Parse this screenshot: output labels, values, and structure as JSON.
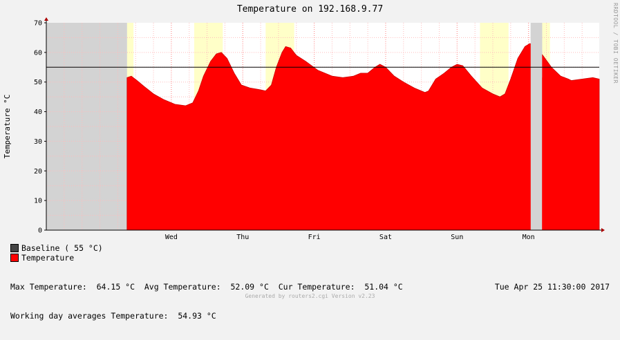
{
  "chart_data": {
    "type": "area",
    "title": "Temperature on 192.168.9.77",
    "ylabel": "Temperature °C",
    "ylim": [
      0,
      70
    ],
    "yticks": [
      0,
      10,
      20,
      30,
      40,
      50,
      60,
      70
    ],
    "xlim_days": [
      -2.25,
      4.82
    ],
    "day_labels": [
      "Wed",
      "Thu",
      "Fri",
      "Sat",
      "Sun",
      "Mon"
    ],
    "day_label_x": [
      -0.5,
      0.5,
      1.5,
      2.5,
      3.5,
      4.5
    ],
    "baseline": {
      "name": "Baseline ( 55 °C)",
      "value": 55,
      "color": "#555555"
    },
    "series": [
      {
        "name": "Temperature",
        "color": "#ff0000",
        "gap": [
          4.53,
          4.69
        ],
        "points": [
          [
            -1.12,
            51.5
          ],
          [
            -1.06,
            52
          ],
          [
            -0.98,
            50.5
          ],
          [
            -0.88,
            48.5
          ],
          [
            -0.75,
            46
          ],
          [
            -0.6,
            44
          ],
          [
            -0.45,
            42.5
          ],
          [
            -0.3,
            42
          ],
          [
            -0.2,
            43
          ],
          [
            -0.12,
            47
          ],
          [
            -0.05,
            52
          ],
          [
            0.05,
            57
          ],
          [
            0.13,
            59.5
          ],
          [
            0.2,
            60
          ],
          [
            0.28,
            58
          ],
          [
            0.38,
            53
          ],
          [
            0.48,
            49
          ],
          [
            0.6,
            48
          ],
          [
            0.72,
            47.5
          ],
          [
            0.82,
            47
          ],
          [
            0.9,
            49
          ],
          [
            0.97,
            55
          ],
          [
            1.05,
            60
          ],
          [
            1.1,
            62
          ],
          [
            1.17,
            61.5
          ],
          [
            1.25,
            59
          ],
          [
            1.38,
            57
          ],
          [
            1.55,
            54
          ],
          [
            1.75,
            52
          ],
          [
            1.9,
            51.5
          ],
          [
            2.05,
            52
          ],
          [
            2.15,
            53
          ],
          [
            2.25,
            53
          ],
          [
            2.35,
            55
          ],
          [
            2.42,
            56
          ],
          [
            2.5,
            55
          ],
          [
            2.62,
            52
          ],
          [
            2.75,
            50
          ],
          [
            2.9,
            48
          ],
          [
            3.05,
            46.5
          ],
          [
            3.1,
            47
          ],
          [
            3.2,
            51
          ],
          [
            3.32,
            53
          ],
          [
            3.42,
            55
          ],
          [
            3.5,
            56
          ],
          [
            3.58,
            55.5
          ],
          [
            3.7,
            52
          ],
          [
            3.85,
            48
          ],
          [
            4.0,
            46
          ],
          [
            4.1,
            45
          ],
          [
            4.17,
            46
          ],
          [
            4.25,
            51
          ],
          [
            4.35,
            58
          ],
          [
            4.45,
            62
          ],
          [
            4.52,
            63
          ],
          [
            4.6,
            62
          ],
          [
            4.7,
            59
          ],
          [
            4.82,
            55
          ],
          [
            4.95,
            52
          ],
          [
            5.06,
            51
          ],
          [
            5.1,
            50.5
          ],
          [
            5.4,
            51.5
          ],
          [
            5.49,
            51
          ]
        ],
        "tail": [
          [
            4.69,
            51.5
          ],
          [
            4.8,
            51
          ]
        ]
      }
    ],
    "shading": {
      "nodata": [
        [
          -2.25,
          -1.12
        ],
        [
          4.53,
          4.69
        ]
      ],
      "working_hours": [
        [
          -1.12,
          -1.03
        ],
        [
          -0.18,
          0.22
        ],
        [
          0.82,
          1.22
        ],
        [
          3.82,
          4.22
        ],
        [
          4.69,
          4.8
        ]
      ]
    },
    "colors": {
      "nodata": "#d3d3d3",
      "working": "#ffffc8",
      "plot_bg": "#ffffff",
      "grid": "#ffbbbb"
    }
  },
  "legend": [
    {
      "label": "Baseline ( 55 °C)",
      "color": "#444444"
    },
    {
      "label": "Temperature",
      "color": "#ff0000"
    }
  ],
  "stats": {
    "line1": "Max Temperature:  64.15 °C  Avg Temperature:  52.09 °C  Cur Temperature:  51.04 °C",
    "line2": "Working day averages Temperature:  54.93 °C"
  },
  "timestamp": "Tue Apr 25 11:30:00 2017",
  "side_text": "RRDTOOL / TOBI OETIKER",
  "footer": "Generated by routers2.cgi Version v2.23"
}
